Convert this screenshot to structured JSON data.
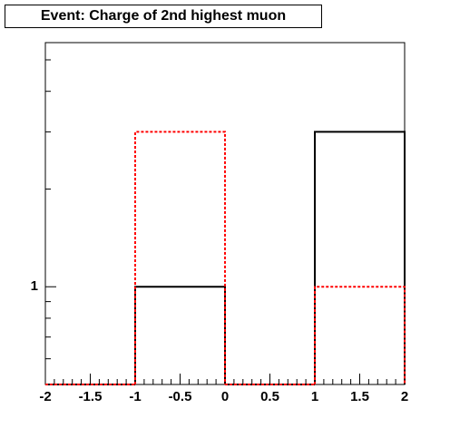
{
  "chart_data": {
    "type": "histogram",
    "title": "Event: Charge of 2nd highest muon",
    "bins": [
      -2,
      -1,
      0,
      1,
      2
    ],
    "series": [
      {
        "color": "#000000",
        "values": [
          0,
          1,
          0,
          3
        ],
        "style": "solid"
      },
      {
        "color": "#ff0000",
        "values": [
          0,
          3,
          0,
          1
        ],
        "style": "dashed"
      }
    ],
    "xlim": [
      -2,
      2
    ],
    "xticks": [
      -2,
      -1.5,
      -1,
      -0.5,
      0,
      0.5,
      1,
      1.5,
      2
    ],
    "ylim": [
      0.5,
      5.65
    ],
    "yticks": [
      1
    ],
    "yminorticks": [
      0.6,
      0.7,
      0.8,
      0.9,
      2,
      3,
      4,
      5
    ],
    "ylog": true
  }
}
